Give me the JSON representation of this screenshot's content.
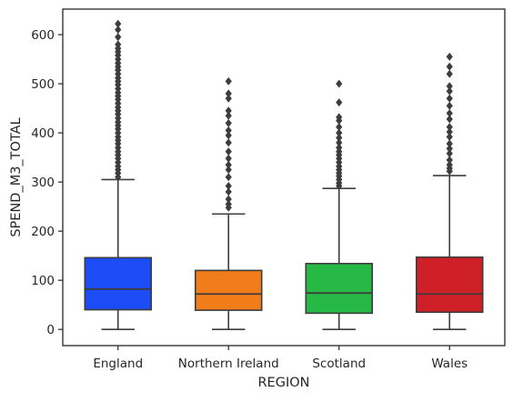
{
  "chart_data": {
    "type": "box",
    "xlabel": "REGION",
    "ylabel": "SPEND_M3_TOTAL",
    "ylim": [
      -33,
      652
    ],
    "yticks": [
      0,
      100,
      200,
      300,
      400,
      500,
      600
    ],
    "grid": false,
    "legend": "none",
    "categories": [
      "England",
      "Northern Ireland",
      "Scotland",
      "Wales"
    ],
    "colors": [
      "#1c4cf5",
      "#f07d1a",
      "#27b945",
      "#cf1f27"
    ],
    "boxes": [
      {
        "category": "England",
        "min": 0,
        "q1": 40,
        "median": 82,
        "q3": 146,
        "max": 305,
        "outliers": [
          310,
          318,
          325,
          332,
          340,
          348,
          355,
          362,
          370,
          378,
          385,
          392,
          400,
          408,
          415,
          422,
          430,
          438,
          445,
          452,
          460,
          468,
          475,
          482,
          490,
          498,
          505,
          512,
          520,
          528,
          535,
          542,
          550,
          558,
          565,
          572,
          580,
          595,
          610,
          622
        ]
      },
      {
        "category": "Northern Ireland",
        "min": 0,
        "q1": 39,
        "median": 72,
        "q3": 120,
        "max": 235,
        "outliers": [
          248,
          255,
          265,
          280,
          292,
          310,
          325,
          335,
          348,
          362,
          380,
          395,
          405,
          420,
          435,
          445,
          470,
          480,
          505
        ]
      },
      {
        "category": "Scotland",
        "min": 0,
        "q1": 33,
        "median": 74,
        "q3": 134,
        "max": 287,
        "outliers": [
          292,
          298,
          305,
          312,
          318,
          325,
          332,
          340,
          348,
          355,
          362,
          370,
          380,
          390,
          400,
          412,
          425,
          432,
          462,
          500
        ]
      },
      {
        "category": "Wales",
        "min": 0,
        "q1": 35,
        "median": 72,
        "q3": 147,
        "max": 313,
        "outliers": [
          322,
          328,
          335,
          345,
          358,
          368,
          378,
          392,
          402,
          412,
          428,
          440,
          455,
          470,
          485,
          495,
          520,
          535,
          555
        ]
      }
    ]
  }
}
